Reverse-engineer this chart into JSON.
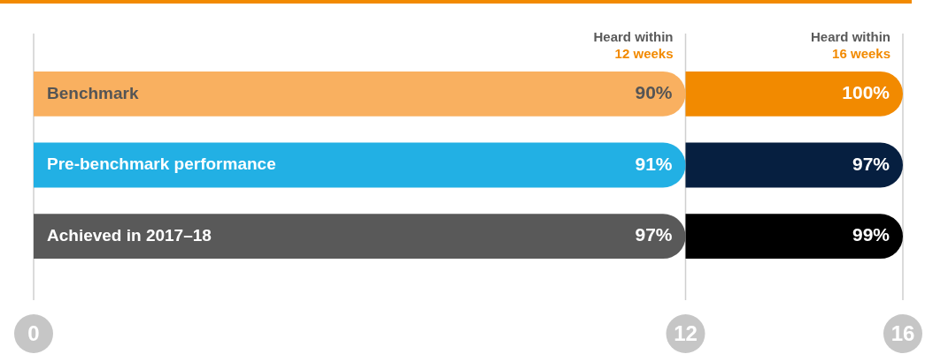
{
  "chart_data": {
    "type": "bar",
    "orientation": "horizontal",
    "stacked": true,
    "grid": "x",
    "categories": [
      "Benchmark",
      "Pre-benchmark performance",
      "Achieved in 2017–18"
    ],
    "series": [
      {
        "name": "Heard within 12 weeks",
        "colors": [
          "#f9b060",
          "#22b0e4",
          "#595959"
        ],
        "values": [
          12,
          12,
          12
        ]
      },
      {
        "name": "Heard within 16 weeks",
        "colors": [
          "#f28a00",
          "#061f40",
          "#000000"
        ],
        "values": [
          4,
          4,
          4
        ]
      }
    ],
    "annotations": [
      "90%",
      "91%",
      "97%",
      "100%",
      "97%",
      "99%"
    ],
    "xlim": [
      0,
      16
    ],
    "xticks": [
      0,
      12,
      16
    ]
  }
}
